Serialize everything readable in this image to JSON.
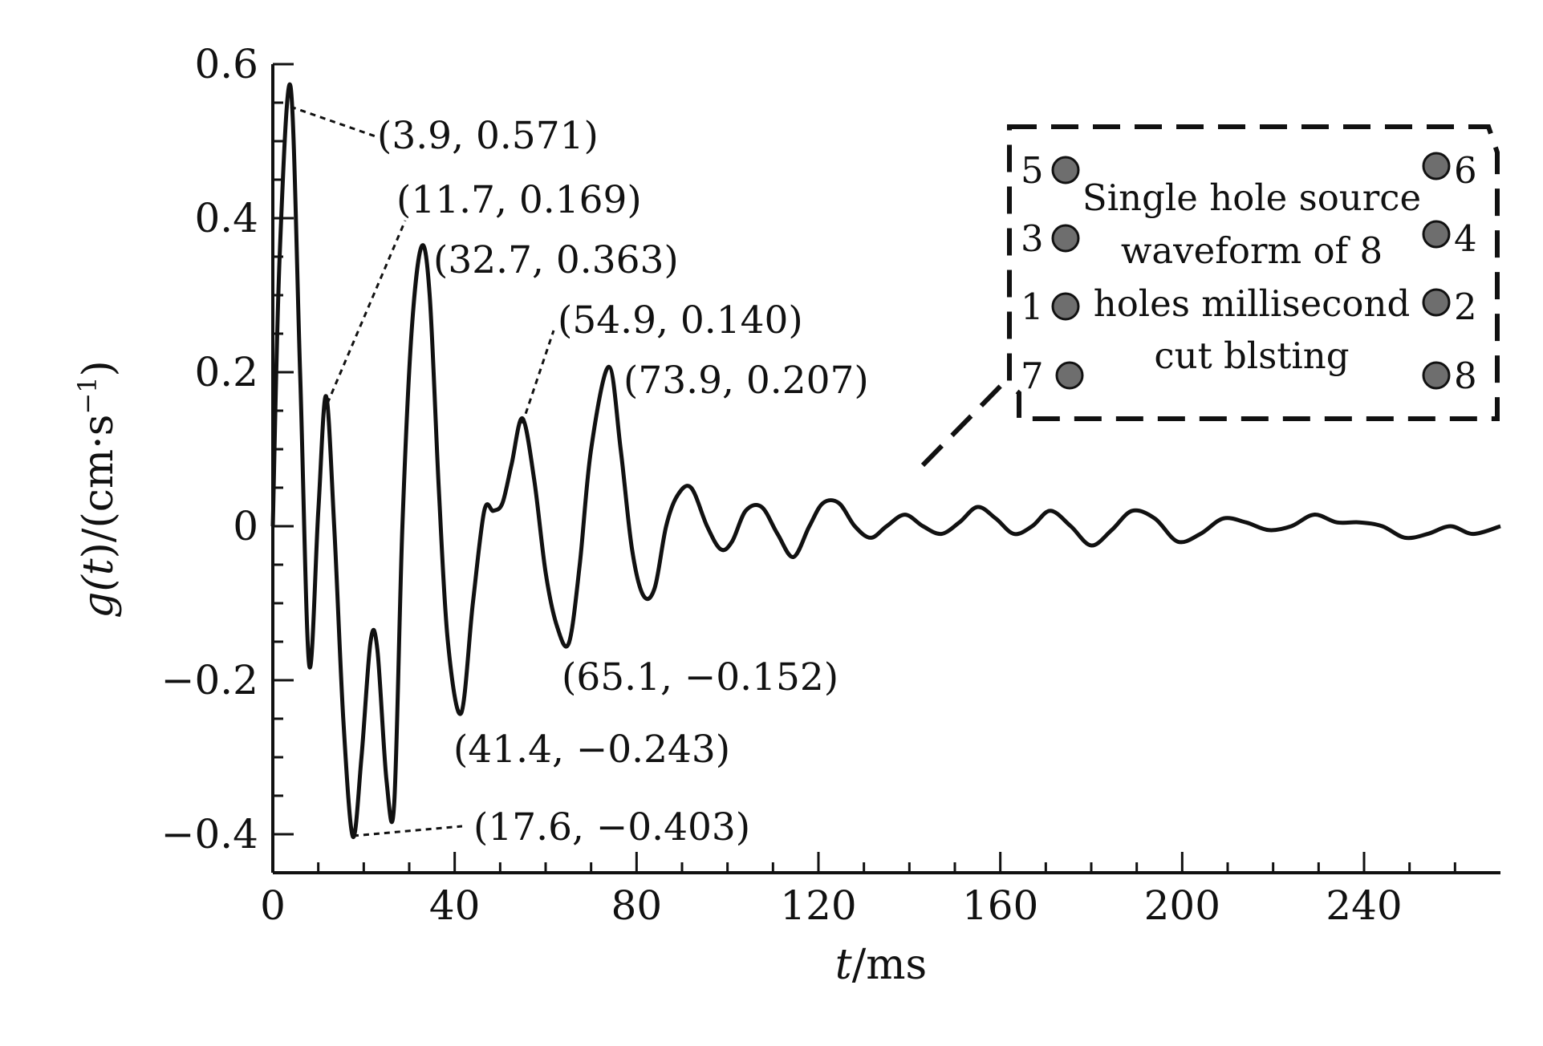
{
  "chart_data": {
    "type": "line",
    "xlabel": "t/ms",
    "xlabel_parts": {
      "var": "t",
      "unit": "/ms"
    },
    "ylabel": "g(t)/(cm·s⁻¹)",
    "ylabel_parts": {
      "g": "g(",
      "t": "t",
      "rest": ")/(cm·s",
      "sup": "−1",
      "close": ")"
    },
    "xlim": [
      0,
      270
    ],
    "ylim": [
      -0.45,
      0.6
    ],
    "x_ticks": [
      0,
      40,
      80,
      120,
      160,
      200,
      240
    ],
    "x_tick_labels": [
      "0",
      "40",
      "80",
      "120",
      "160",
      "200",
      "240"
    ],
    "y_ticks": [
      0.6,
      0.4,
      0.2,
      0,
      -0.2,
      -0.4
    ],
    "y_tick_labels": [
      "0.6",
      "0.4",
      "0.2",
      "0",
      "−0.2",
      "−0.4"
    ],
    "series": [
      {
        "x": [
          0,
          1.5,
          3.9,
          6.0,
          8.0,
          10.0,
          11.7,
          13.5,
          15.5,
          17.6,
          19.5,
          21.5,
          23.0,
          25.0,
          26.7,
          28.5,
          30.5,
          32.7,
          34.5,
          36.5,
          38.5,
          41.4,
          44.0,
          46.5,
          48.5,
          50.5,
          52.5,
          54.9,
          57.5,
          60.0,
          62.5,
          65.1,
          67.5,
          70.0,
          73.9,
          76.5,
          79.0,
          81.5,
          84.0,
          86.5,
          89.0,
          92.0,
          95.5,
          98.5,
          101.0,
          104.0,
          107.5,
          111.0,
          114.5,
          118.0,
          121.0,
          124.5,
          128.0,
          131.5,
          135.0,
          139.0,
          143.0,
          147.0,
          151.0,
          155.0,
          159.0,
          163.0,
          167.0,
          171.0,
          175.5,
          180.0,
          184.5,
          189.0,
          194.0,
          199.0,
          204.0,
          209.0,
          214.0,
          219.0,
          224.0,
          229.0,
          234.0,
          239.0,
          244.0,
          249.0,
          254.0,
          259.0,
          264.0,
          270.0
        ],
        "y": [
          0.0,
          0.35,
          0.571,
          0.2,
          -0.18,
          0.02,
          0.169,
          0.0,
          -0.25,
          -0.403,
          -0.3,
          -0.15,
          -0.16,
          -0.33,
          -0.36,
          0.0,
          0.25,
          0.363,
          0.3,
          0.05,
          -0.15,
          -0.243,
          -0.1,
          0.02,
          0.02,
          0.03,
          0.08,
          0.14,
          0.06,
          -0.06,
          -0.13,
          -0.152,
          -0.05,
          0.1,
          0.207,
          0.1,
          -0.03,
          -0.09,
          -0.08,
          0.0,
          0.04,
          0.05,
          0.0,
          -0.03,
          -0.02,
          0.02,
          0.025,
          -0.01,
          -0.04,
          0.0,
          0.03,
          0.03,
          0.0,
          -0.015,
          0.0,
          0.015,
          0.0,
          -0.01,
          0.005,
          0.025,
          0.01,
          -0.01,
          0.0,
          0.02,
          0.0,
          -0.025,
          -0.005,
          0.02,
          0.01,
          -0.02,
          -0.01,
          0.01,
          0.005,
          -0.005,
          0.0,
          0.015,
          0.005,
          0.005,
          0.0,
          -0.015,
          -0.01,
          0.0,
          -0.01,
          0.0
        ]
      }
    ],
    "annotations": [
      {
        "text": "(3.9, 0.571)",
        "x": 3.9,
        "y": 0.571
      },
      {
        "text": "(11.7, 0.169)",
        "x": 11.7,
        "y": 0.169
      },
      {
        "text": "(32.7, 0.363)",
        "x": 32.7,
        "y": 0.363
      },
      {
        "text": "(54.9, 0.140)",
        "x": 54.9,
        "y": 0.14
      },
      {
        "text": "(73.9, 0.207)",
        "x": 73.9,
        "y": 0.207
      },
      {
        "text": "(65.1, −0.152)",
        "x": 65.1,
        "y": -0.152
      },
      {
        "text": "(41.4, −0.243)",
        "x": 41.4,
        "y": -0.243
      },
      {
        "text": "(17.6, −0.403)",
        "x": 17.6,
        "y": -0.403
      }
    ],
    "legend": {
      "lines": [
        "Single hole source",
        "waveform of 8",
        "holes millisecond",
        "cut blsting"
      ],
      "left_numbers": [
        "5",
        "3",
        "1",
        "7"
      ],
      "right_numbers": [
        "6",
        "4",
        "2",
        "8"
      ],
      "hole_color": "#6e6e6e"
    },
    "line_color": "#111111",
    "grid": false
  }
}
